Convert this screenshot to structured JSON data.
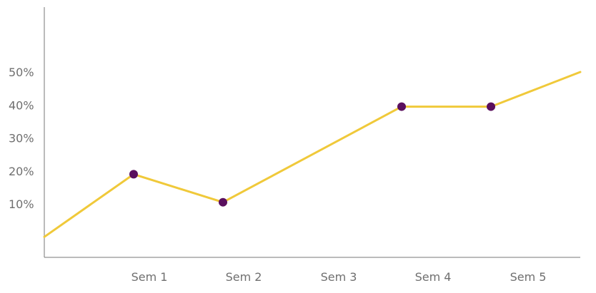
{
  "chart_data": {
    "type": "line",
    "categories": [
      "Sem 1",
      "Sem 2",
      "Sem 3",
      "Sem 4",
      "Sem 5"
    ],
    "y_tick_labels": [
      "10%",
      "20%",
      "30%",
      "40%",
      "50%"
    ],
    "y_ticks": [
      10,
      20,
      30,
      40,
      50
    ],
    "series": [
      {
        "x": [
          0.0,
          1.0,
          2.0,
          3.0,
          4.0,
          5.0,
          6.0
        ],
        "values": [
          0,
          19,
          10.5,
          null,
          39.5,
          39.5,
          50
        ],
        "segments_x": [
          0.0,
          1.0,
          2.0,
          4.0,
          5.0,
          6.0
        ],
        "segments_y": [
          0,
          19,
          10.5,
          39.5,
          39.5,
          50
        ],
        "marker_x": [
          1.0,
          2.0,
          4.0,
          5.0
        ],
        "marker_y": [
          19,
          10.5,
          39.5,
          39.5
        ]
      }
    ],
    "xlabel": "",
    "ylabel": "",
    "ylim": [
      -1,
      75
    ],
    "grid": false,
    "colors": {
      "line": "#f0c93a",
      "marker": "#5a0f5e",
      "axis": "#777777",
      "text": "#6f6f6f"
    }
  }
}
